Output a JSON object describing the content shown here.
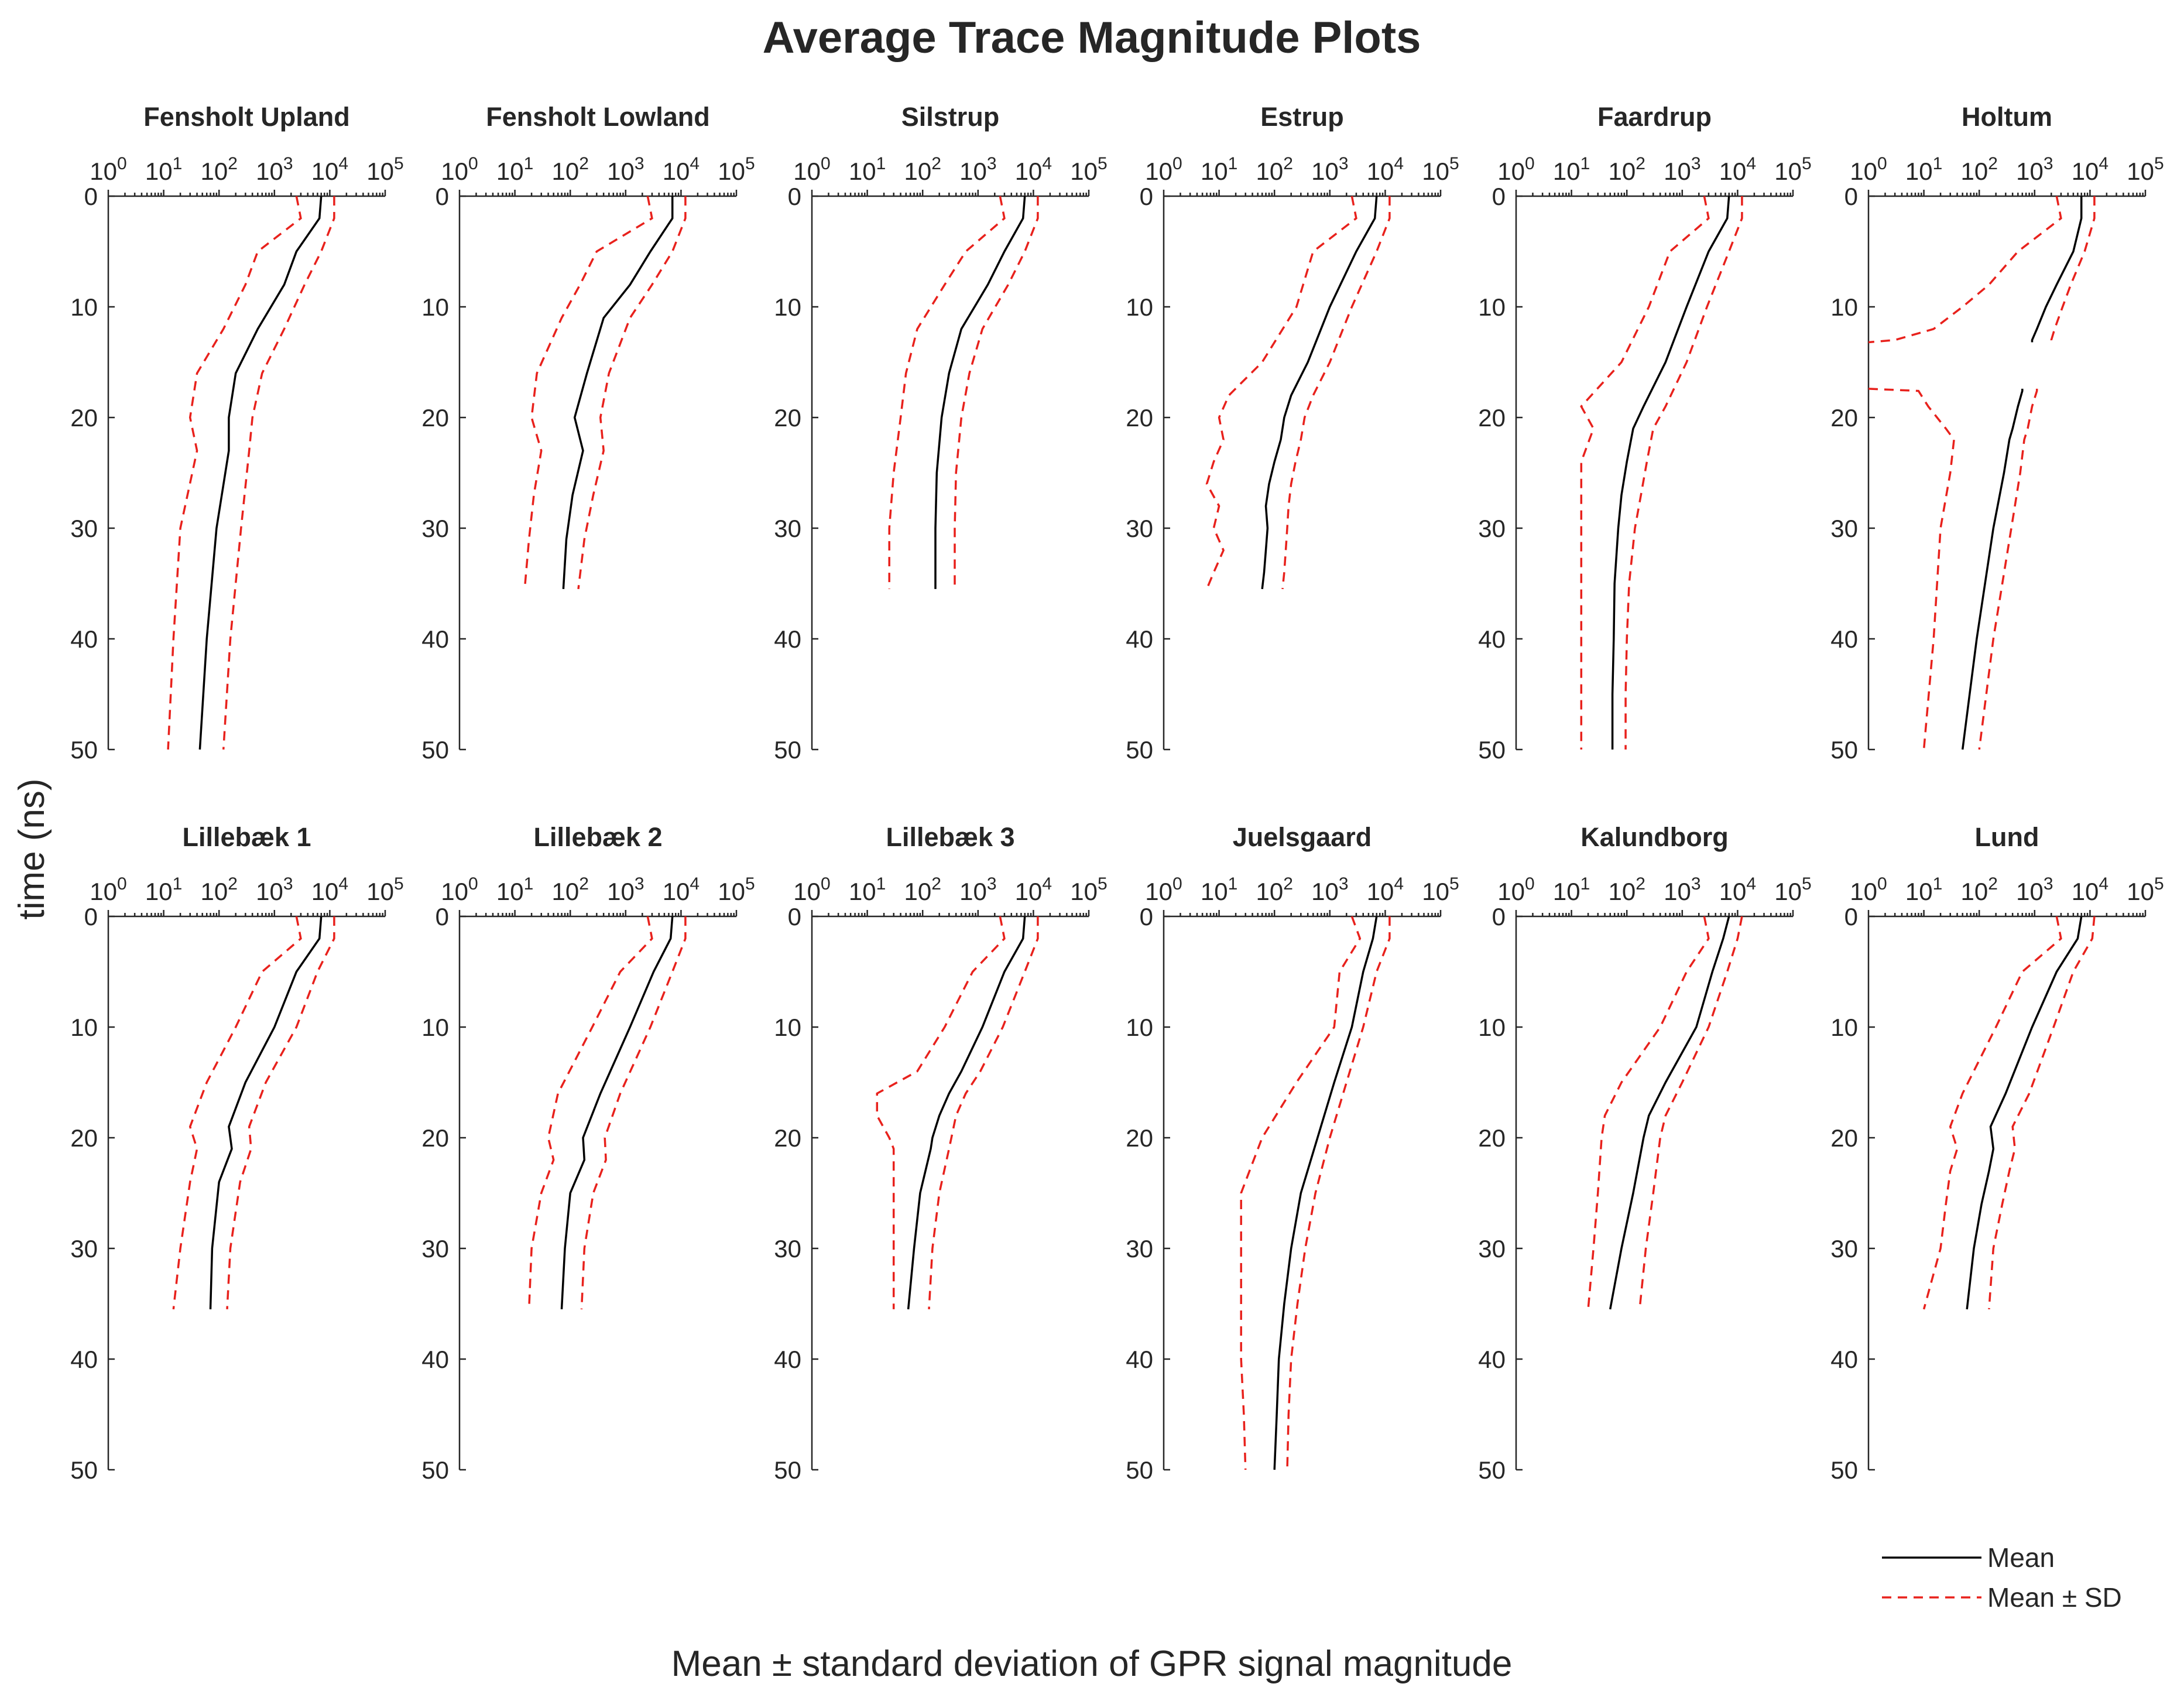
{
  "chart_data": {
    "type": "line",
    "title": "Average Trace Magnitude Plots",
    "xlabel": "Mean ± standard deviation of GPR signal magnitude",
    "ylabel": "time (ns)",
    "x_scale": "log",
    "x_range": [
      1,
      100000
    ],
    "x_tick_bases": [
      "10",
      "10",
      "10",
      "10",
      "10",
      "10"
    ],
    "x_tick_exponents": [
      "0",
      "1",
      "2",
      "3",
      "4",
      "5"
    ],
    "y_range": [
      0,
      50
    ],
    "y_reversed": true,
    "y_ticks": [
      "0",
      "10",
      "20",
      "30",
      "40",
      "50"
    ],
    "legend": {
      "position": "bottom-right",
      "mean_label": "Mean",
      "sd_label": "Mean ± SD"
    },
    "panels": [
      {
        "title": "Fensholt Upland",
        "t": [
          0,
          2,
          5,
          8,
          12,
          16,
          20,
          23,
          30,
          40,
          50
        ],
        "lower": [
          2500,
          3000,
          500,
          300,
          120,
          40,
          30,
          40,
          20,
          15,
          12
        ],
        "mean": [
          7000,
          6500,
          2500,
          1500,
          500,
          200,
          150,
          150,
          90,
          60,
          45
        ],
        "upper": [
          12000,
          12000,
          7000,
          3500,
          1500,
          600,
          400,
          350,
          250,
          160,
          120
        ]
      },
      {
        "title": "Fensholt Lowland",
        "t": [
          0,
          2,
          5,
          8,
          11,
          16,
          20,
          23,
          27,
          31,
          35.5
        ],
        "lower": [
          2500,
          3000,
          300,
          150,
          70,
          25,
          20,
          30,
          22,
          18,
          15
        ],
        "mean": [
          7000,
          7000,
          2800,
          1200,
          400,
          200,
          120,
          170,
          110,
          85,
          75
        ],
        "upper": [
          12000,
          12000,
          7000,
          3000,
          1200,
          500,
          350,
          400,
          260,
          180,
          140
        ]
      },
      {
        "title": "Silstrup",
        "t": [
          0,
          2,
          5,
          8,
          12,
          16,
          20,
          25,
          30,
          35.5
        ],
        "lower": [
          2500,
          3000,
          600,
          250,
          80,
          50,
          40,
          30,
          25,
          25
        ],
        "mean": [
          7000,
          6500,
          3000,
          1500,
          500,
          300,
          220,
          180,
          170,
          170
        ],
        "upper": [
          12000,
          12000,
          7000,
          3500,
          1200,
          700,
          500,
          400,
          380,
          380
        ]
      },
      {
        "title": "Estrup",
        "t": [
          0,
          2,
          5,
          10,
          15,
          18,
          20,
          22,
          24,
          26,
          28,
          30,
          32,
          34,
          35.5
        ],
        "lower": [
          2500,
          3000,
          500,
          250,
          60,
          15,
          10,
          12,
          8,
          6,
          10,
          8,
          12,
          8,
          6
        ],
        "mean": [
          7000,
          6500,
          3000,
          1000,
          400,
          200,
          150,
          130,
          100,
          80,
          70,
          75,
          70,
          65,
          60
        ],
        "upper": [
          12000,
          12000,
          7000,
          2500,
          1000,
          500,
          350,
          300,
          240,
          200,
          180,
          170,
          160,
          150,
          140
        ]
      },
      {
        "title": "Faardrup",
        "t": [
          0,
          2,
          5,
          10,
          15,
          19,
          21,
          24,
          27,
          30,
          35,
          40,
          45,
          50
        ],
        "lower": [
          2500,
          3000,
          600,
          250,
          80,
          15,
          25,
          15,
          15,
          15,
          15,
          15,
          15,
          15
        ],
        "mean": [
          7000,
          6500,
          3000,
          1200,
          500,
          200,
          130,
          100,
          80,
          70,
          60,
          58,
          55,
          55
        ],
        "upper": [
          12000,
          12000,
          7000,
          2800,
          1200,
          500,
          300,
          230,
          180,
          140,
          110,
          100,
          95,
          95
        ]
      },
      {
        "title": "Holtum",
        "t": [
          0,
          2,
          5,
          8,
          10,
          12,
          13,
          13.2
        ],
        "lower": [
          2500,
          3000,
          500,
          150,
          50,
          15,
          3,
          1
        ],
        "mean": [
          7000,
          7000,
          5000,
          2500,
          1600,
          1100,
          900,
          900
        ],
        "upper": [
          12000,
          12000,
          8000,
          4500,
          3200,
          2300,
          2000,
          2000
        ],
        "t2": [
          17.4,
          17.6,
          19,
          21,
          22,
          25,
          30,
          40,
          50
        ],
        "lower2": [
          1,
          8,
          12,
          25,
          35,
          30,
          20,
          15,
          10
        ],
        "mean2": [
          600,
          600,
          500,
          400,
          350,
          280,
          180,
          90,
          50
        ],
        "upper2": [
          1100,
          1100,
          900,
          750,
          650,
          550,
          380,
          180,
          100
        ]
      },
      {
        "title": "Lillebæk 1",
        "t": [
          0,
          2,
          5,
          10,
          15,
          19,
          21,
          24,
          30,
          35.5
        ],
        "lower": [
          2500,
          3000,
          600,
          200,
          60,
          30,
          40,
          30,
          20,
          15
        ],
        "mean": [
          7000,
          6500,
          2500,
          1000,
          300,
          150,
          170,
          100,
          75,
          70
        ],
        "upper": [
          12000,
          12000,
          6000,
          2500,
          700,
          350,
          380,
          240,
          160,
          140
        ]
      },
      {
        "title": "Lillebæk 2",
        "t": [
          0,
          2,
          5,
          10,
          16,
          20,
          22,
          25,
          30,
          35.5
        ],
        "lower": [
          2500,
          3000,
          800,
          250,
          60,
          40,
          50,
          30,
          20,
          18
        ],
        "mean": [
          7000,
          6500,
          3200,
          1200,
          350,
          170,
          180,
          100,
          80,
          70
        ],
        "upper": [
          12000,
          12000,
          7000,
          2800,
          800,
          420,
          440,
          260,
          180,
          160
        ]
      },
      {
        "title": "Lillebæk 3",
        "t": [
          0,
          2,
          5,
          10,
          14,
          16,
          18,
          20,
          21,
          25,
          30,
          35.5
        ],
        "lower": [
          2500,
          3000,
          800,
          250,
          80,
          15,
          15,
          25,
          30,
          30,
          30,
          30
        ],
        "mean": [
          7000,
          6500,
          3000,
          1200,
          500,
          300,
          200,
          150,
          140,
          90,
          70,
          55
        ],
        "upper": [
          12000,
          12000,
          7000,
          2800,
          1100,
          600,
          400,
          330,
          300,
          200,
          150,
          130
        ]
      },
      {
        "title": "Juelsgaard",
        "t": [
          0,
          2,
          5,
          10,
          15,
          20,
          25,
          30,
          35,
          40,
          45,
          50
        ],
        "lower": [
          2500,
          3500,
          1500,
          1200,
          250,
          60,
          25,
          25,
          25,
          25,
          28,
          30
        ],
        "mean": [
          7000,
          6000,
          4000,
          2500,
          1200,
          600,
          300,
          200,
          150,
          120,
          110,
          100
        ],
        "upper": [
          12000,
          12000,
          7000,
          4000,
          2000,
          1000,
          550,
          360,
          260,
          200,
          180,
          170
        ]
      },
      {
        "title": "Kalundborg",
        "t": [
          0,
          2,
          5,
          10,
          15,
          18,
          20,
          25,
          30,
          35.5
        ],
        "lower": [
          2500,
          3000,
          1200,
          400,
          80,
          40,
          35,
          30,
          25,
          20
        ],
        "mean": [
          7000,
          5500,
          3500,
          1800,
          500,
          250,
          200,
          130,
          80,
          50
        ],
        "upper": [
          12000,
          10000,
          6500,
          3000,
          1000,
          500,
          400,
          300,
          220,
          170
        ]
      },
      {
        "title": "Lund",
        "t": [
          0,
          2,
          5,
          10,
          16,
          19,
          21,
          23,
          26,
          30,
          35.5
        ],
        "lower": [
          2500,
          3000,
          600,
          200,
          50,
          30,
          40,
          30,
          25,
          20,
          10
        ],
        "mean": [
          7000,
          6000,
          2500,
          900,
          300,
          160,
          180,
          150,
          110,
          80,
          60
        ],
        "upper": [
          12000,
          11000,
          5000,
          2200,
          800,
          400,
          440,
          350,
          260,
          180,
          150
        ]
      }
    ]
  }
}
